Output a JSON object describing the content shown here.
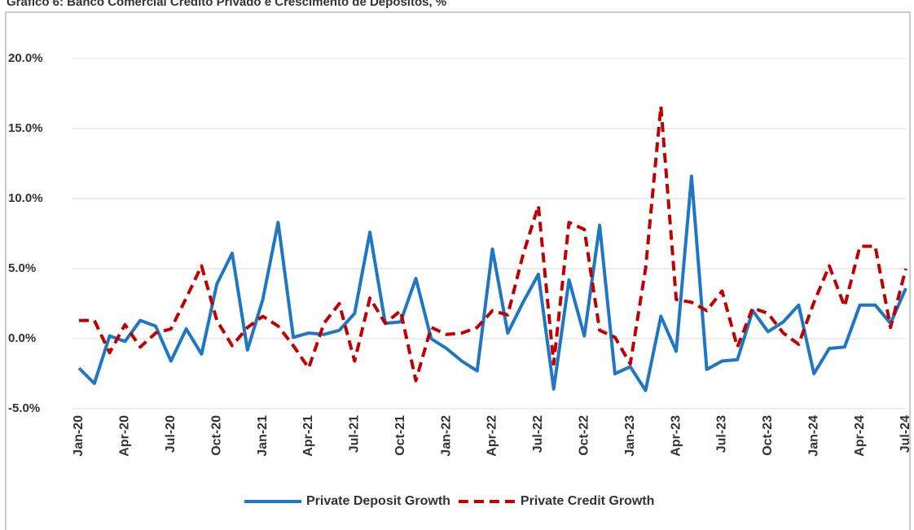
{
  "chart_data": {
    "type": "line",
    "title": "Gráfico 6: Banco Comercial Crédito Privado e Crescimento de Depósitos, %",
    "categories": [
      "Jan-20",
      null,
      null,
      "Apr-20",
      null,
      null,
      "Jul-20",
      null,
      null,
      "Oct-20",
      null,
      null,
      "Jan-21",
      null,
      null,
      "Apr-21",
      null,
      null,
      "Jul-21",
      null,
      null,
      "Oct-21",
      null,
      null,
      "Jan-22",
      null,
      null,
      "Apr-22",
      null,
      null,
      "Jul-22",
      null,
      null,
      "Oct-22",
      null,
      null,
      "Jan-23",
      null,
      null,
      "Apr-23",
      null,
      null,
      "Jul-23",
      null,
      null,
      "Oct-23",
      null,
      null,
      "Jan-24",
      null,
      null,
      "Apr-24",
      null,
      null,
      "Jul-24"
    ],
    "series": [
      {
        "name": "Private Deposit Growth",
        "color": "#1f77c4",
        "dash": false,
        "values": [
          -2.1,
          -3.2,
          0.2,
          -0.2,
          1.3,
          0.9,
          -1.6,
          0.7,
          -1.1,
          3.9,
          6.1,
          -0.8,
          2.8,
          8.3,
          0.1,
          0.4,
          0.3,
          0.6,
          1.8,
          7.6,
          1.1,
          1.2,
          4.3,
          0.0,
          -0.7,
          -1.6,
          -2.3,
          6.4,
          0.4,
          2.6,
          4.6,
          -3.6,
          4.2,
          0.2,
          8.1,
          -2.5,
          -2.0,
          -3.7,
          1.6,
          -0.9,
          11.6,
          -2.2,
          -1.6,
          -1.5,
          2.0,
          0.5,
          1.2,
          2.4,
          -2.5,
          -0.7,
          -0.6,
          2.4,
          2.4,
          1.1,
          3.6
        ]
      },
      {
        "name": "Private Credit Growth",
        "color": "#c00000",
        "dash": true,
        "values": [
          1.3,
          1.3,
          -1.0,
          1.0,
          -0.6,
          0.4,
          0.7,
          2.9,
          5.2,
          1.3,
          -0.5,
          0.8,
          1.6,
          0.9,
          -0.5,
          -2.1,
          1.1,
          2.5,
          -1.6,
          2.9,
          1.1,
          2.0,
          -3.0,
          0.8,
          0.3,
          0.4,
          0.8,
          2.0,
          1.7,
          6.0,
          9.5,
          -1.8,
          8.3,
          7.8,
          0.6,
          0.1,
          -1.8,
          5.0,
          16.6,
          2.8,
          2.6,
          2.0,
          3.4,
          -0.6,
          2.2,
          1.8,
          0.4,
          -0.4,
          2.6,
          5.2,
          2.3,
          6.6,
          6.6,
          0.8,
          5.0
        ]
      }
    ],
    "ylim": [
      -5,
      22.5
    ],
    "yticks": [
      {
        "value": -5,
        "label": "-5.0%"
      },
      {
        "value": 0,
        "label": "0.0%"
      },
      {
        "value": 5,
        "label": "5.0%"
      },
      {
        "value": 10,
        "label": "10.0%"
      },
      {
        "value": 15,
        "label": "15.0%"
      },
      {
        "value": 20,
        "label": "20.0%"
      }
    ],
    "grid": true,
    "legend": "bottom"
  }
}
